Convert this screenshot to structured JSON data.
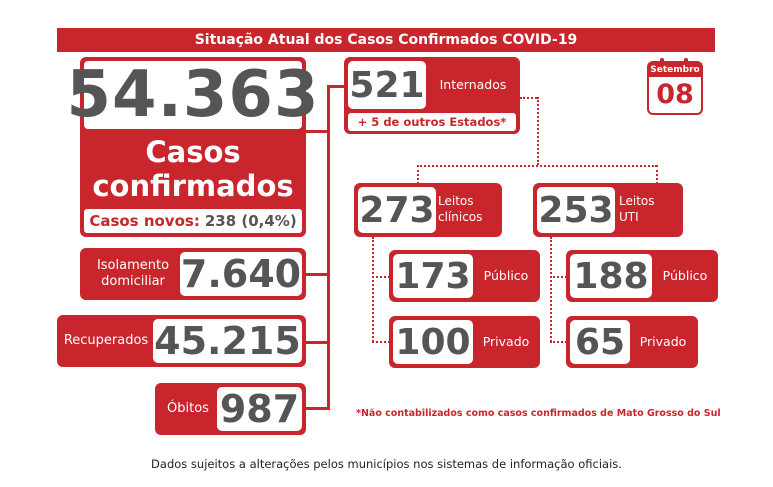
{
  "title": "Situação Atual dos Casos Confirmados COVID-19",
  "calendar": {
    "month": "Setembro",
    "day": "08"
  },
  "confirmed": {
    "total": "54.363",
    "label_line1": "Casos",
    "label_line2": "confirmados",
    "new_label": "Casos novos:",
    "new_value": "238 (0,4%)"
  },
  "isolation": {
    "label_line1": "Isolamento",
    "label_line2": "domiciliar",
    "value": "7.640"
  },
  "recovered": {
    "label": "Recuperados",
    "value": "45.215"
  },
  "deaths": {
    "label": "Óbitos",
    "value": "987"
  },
  "hospitalized": {
    "value": "521",
    "label": "Internados",
    "other_states": "+ 5 de outros Estados*"
  },
  "clinical_beds": {
    "value": "273",
    "label_line1": "Leitos",
    "label_line2": "clínicos",
    "public_value": "173",
    "public_label": "Público",
    "private_value": "100",
    "private_label": "Privado"
  },
  "icu_beds": {
    "value": "253",
    "label_line1": "Leitos",
    "label_line2": "UTI",
    "public_value": "188",
    "public_label": "Público",
    "private_value": "65",
    "private_label": "Privado"
  },
  "footnote": "*Não contabilizados como casos confirmados de Mato Grosso do Sul",
  "footer": "Dados sujeitos a alterações pelos municípios nos sistemas de informação oficiais.",
  "colors": {
    "accent": "#c9252c",
    "number": "#555555"
  }
}
